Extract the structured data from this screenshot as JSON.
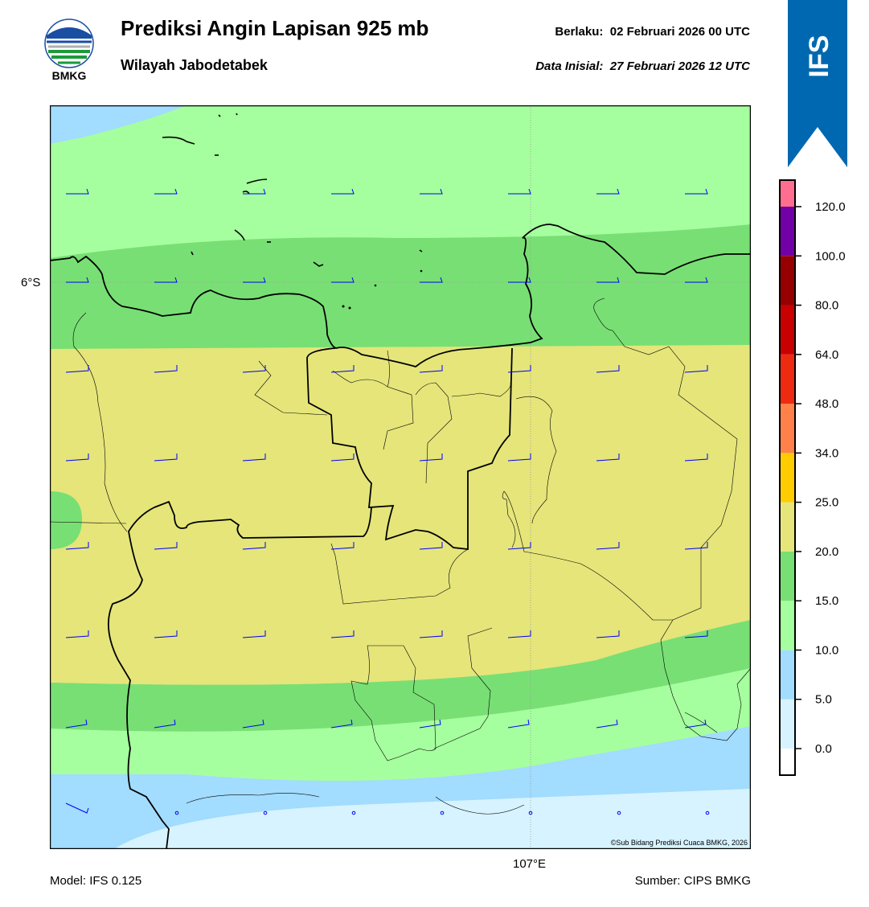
{
  "header": {
    "title": "Prediksi Angin Lapisan 925 mb",
    "subtitle": "Wilayah Jabodetabek",
    "valid_label": "Berlaku:",
    "valid_value": "02 Februari 2026 00 UTC",
    "init_label": "Data Inisial:",
    "init_value": "27 Februari 2026 12 UTC"
  },
  "logo": {
    "text": "BMKG",
    "icon": "bmkg-logo-icon"
  },
  "banner": {
    "text": "IFS",
    "color": "#0068b0"
  },
  "map": {
    "lat_label": "6°S",
    "lon_label": "107°E",
    "copyright": "©Sub Bidang Prediksi Cuaca BMKG, 2026",
    "barb_color": "#0000ff"
  },
  "footer": {
    "model": "Model: IFS 0.125",
    "source": "Sumber: CIPS BMKG"
  },
  "legend": {
    "colors": [
      "#ffffff",
      "#d7f3ff",
      "#a2dcff",
      "#a6ff9e",
      "#78df74",
      "#e5e57a",
      "#ffcc00",
      "#ff8048",
      "#ee2a10",
      "#c80000",
      "#960000",
      "#7300a6",
      "#ff6e8e"
    ],
    "labels": [
      "0.0",
      "5.0",
      "10.0",
      "15.0",
      "20.0",
      "25.0",
      "34.0",
      "48.0",
      "64.0",
      "80.0",
      "100.0",
      "120.0"
    ]
  }
}
